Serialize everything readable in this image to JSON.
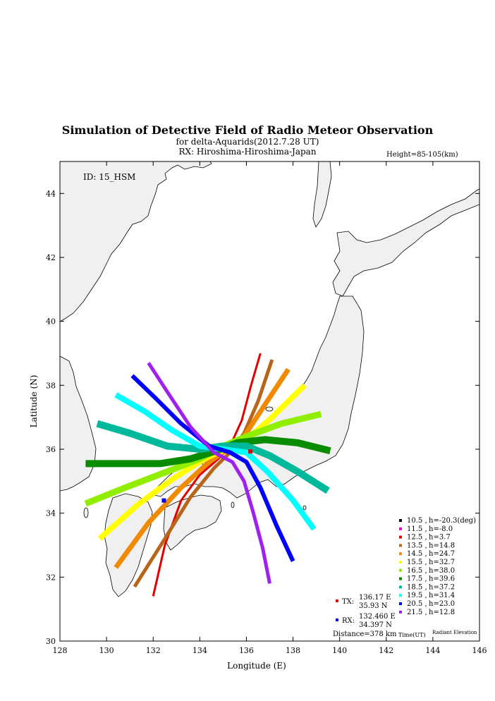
{
  "header": {
    "title": "Simulation of Detective Field of Radio Meteor Observation",
    "subtitle": "for delta-Aquarids(2012.7.28 UT)",
    "rx_line": "RX: Hiroshima-Hiroshima-Japan",
    "height_note": "Height=85-105(km)"
  },
  "chart_data": {
    "type": "scatter",
    "title": "Simulation of Detective Field of Radio Meteor Observation",
    "subtitle": "for delta-Aquarids(2012.7.28 UT)",
    "xlabel": "Longitude (E)",
    "ylabel": "Latitude (N)",
    "xlim": [
      128,
      146
    ],
    "ylim": [
      30,
      45
    ],
    "xticks": [
      128,
      130,
      132,
      134,
      136,
      138,
      140,
      142,
      144,
      146
    ],
    "yticks": [
      30,
      32,
      34,
      36,
      38,
      40,
      42,
      44
    ],
    "grid": false,
    "id_label": "ID: 15_HSM",
    "height_range": "Height=85-105(km)",
    "legend_position": "bottom-right",
    "legend_header_time": "Time(UT)",
    "legend_header_elev": "Radiant Elevation",
    "series": [
      {
        "time": "10.5",
        "elev": "h=-20.3(deg)",
        "color": "#000000",
        "width": 2,
        "x": [],
        "y": []
      },
      {
        "time": "11.5",
        "elev": "h=-8.0",
        "color": "#e000e0",
        "width": 2,
        "x": [],
        "y": []
      },
      {
        "time": "12.5",
        "elev": "h=3.7",
        "color": "#e00000",
        "width": 3,
        "x": [
          132.0,
          132.5,
          133.2,
          134.0,
          134.8,
          135.3,
          135.8,
          136.2,
          136.6
        ],
        "y": [
          31.4,
          33.0,
          34.4,
          35.2,
          35.7,
          36.1,
          36.9,
          38.0,
          39.0
        ]
      },
      {
        "time": "13.5",
        "elev": "h=14.8",
        "color": "#b8651a",
        "width": 5,
        "x": [
          131.2,
          132.5,
          133.6,
          134.6,
          135.3,
          135.9,
          136.5,
          137.1
        ],
        "y": [
          31.7,
          33.2,
          34.5,
          35.4,
          35.9,
          36.5,
          37.5,
          38.8
        ]
      },
      {
        "time": "14.5",
        "elev": "h=24.7",
        "color": "#f08a00",
        "width": 7,
        "x": [
          130.4,
          131.8,
          133.2,
          134.4,
          135.2,
          135.9,
          136.8,
          137.8
        ],
        "y": [
          32.3,
          33.7,
          34.8,
          35.6,
          36.0,
          36.4,
          37.4,
          38.5
        ]
      },
      {
        "time": "15.5",
        "elev": "h=32.7",
        "color": "#ffff00",
        "width": 8,
        "x": [
          129.7,
          131.4,
          132.9,
          134.2,
          135.1,
          136.0,
          137.1,
          138.5
        ],
        "y": [
          33.2,
          34.3,
          35.1,
          35.7,
          36.0,
          36.3,
          37.0,
          38.0
        ]
      },
      {
        "time": "16.5",
        "elev": "h=38.0",
        "color": "#90ee00",
        "width": 9,
        "x": [
          129.1,
          130.8,
          132.6,
          134.0,
          135.0,
          136.0,
          137.5,
          139.2
        ],
        "y": [
          34.3,
          34.8,
          35.3,
          35.7,
          36.1,
          36.4,
          36.8,
          37.1
        ]
      },
      {
        "time": "17.5",
        "elev": "h=39.6",
        "color": "#0a8c00",
        "width": 10,
        "x": [
          129.1,
          130.6,
          132.3,
          133.6,
          134.7,
          135.6,
          136.8,
          138.2,
          139.6
        ],
        "y": [
          35.55,
          35.55,
          35.55,
          35.7,
          35.95,
          36.2,
          36.3,
          36.2,
          35.95
        ]
      },
      {
        "time": "18.5",
        "elev": "h=37.2",
        "color": "#00b89a",
        "width": 10,
        "x": [
          129.6,
          131.0,
          132.6,
          134.0,
          135.0,
          136.0,
          137.0,
          138.2,
          139.5
        ],
        "y": [
          36.8,
          36.5,
          36.1,
          36.0,
          36.1,
          36.1,
          35.8,
          35.3,
          34.7
        ]
      },
      {
        "time": "19.5",
        "elev": "h=31.4",
        "color": "#00ffff",
        "width": 8,
        "x": [
          130.4,
          131.6,
          132.8,
          134.0,
          135.0,
          136.0,
          136.9,
          138.0,
          138.9
        ],
        "y": [
          37.7,
          37.2,
          36.6,
          36.1,
          36.0,
          35.9,
          35.3,
          34.4,
          33.5
        ]
      },
      {
        "time": "20.5",
        "elev": "h=23.0",
        "color": "#0000ff",
        "width": 6,
        "x": [
          131.1,
          132.1,
          133.2,
          134.4,
          135.3,
          136.0,
          136.6,
          137.3,
          138.0
        ],
        "y": [
          38.3,
          37.6,
          36.8,
          36.1,
          35.9,
          35.6,
          34.8,
          33.6,
          32.5
        ]
      },
      {
        "time": "21.5",
        "elev": "h=12.8",
        "color": "#a020f0",
        "width": 5,
        "x": [
          131.8,
          132.6,
          133.6,
          134.6,
          135.4,
          135.9,
          136.3,
          136.7,
          137.0
        ],
        "y": [
          38.7,
          37.8,
          36.7,
          35.9,
          35.6,
          35.0,
          34.0,
          32.9,
          31.8
        ]
      }
    ],
    "stations": [
      {
        "label": "TX:",
        "lon": 136.17,
        "lat": 35.93,
        "lon_text": "136.17 E",
        "lat_text": "35.93 N",
        "color": "#e00000"
      },
      {
        "label": "RX:",
        "lon": 132.46,
        "lat": 34.397,
        "lon_text": "132.460 E",
        "lat_text": "34.397 N",
        "color": "#0000ff"
      }
    ],
    "distance": "Distance=378 km"
  }
}
